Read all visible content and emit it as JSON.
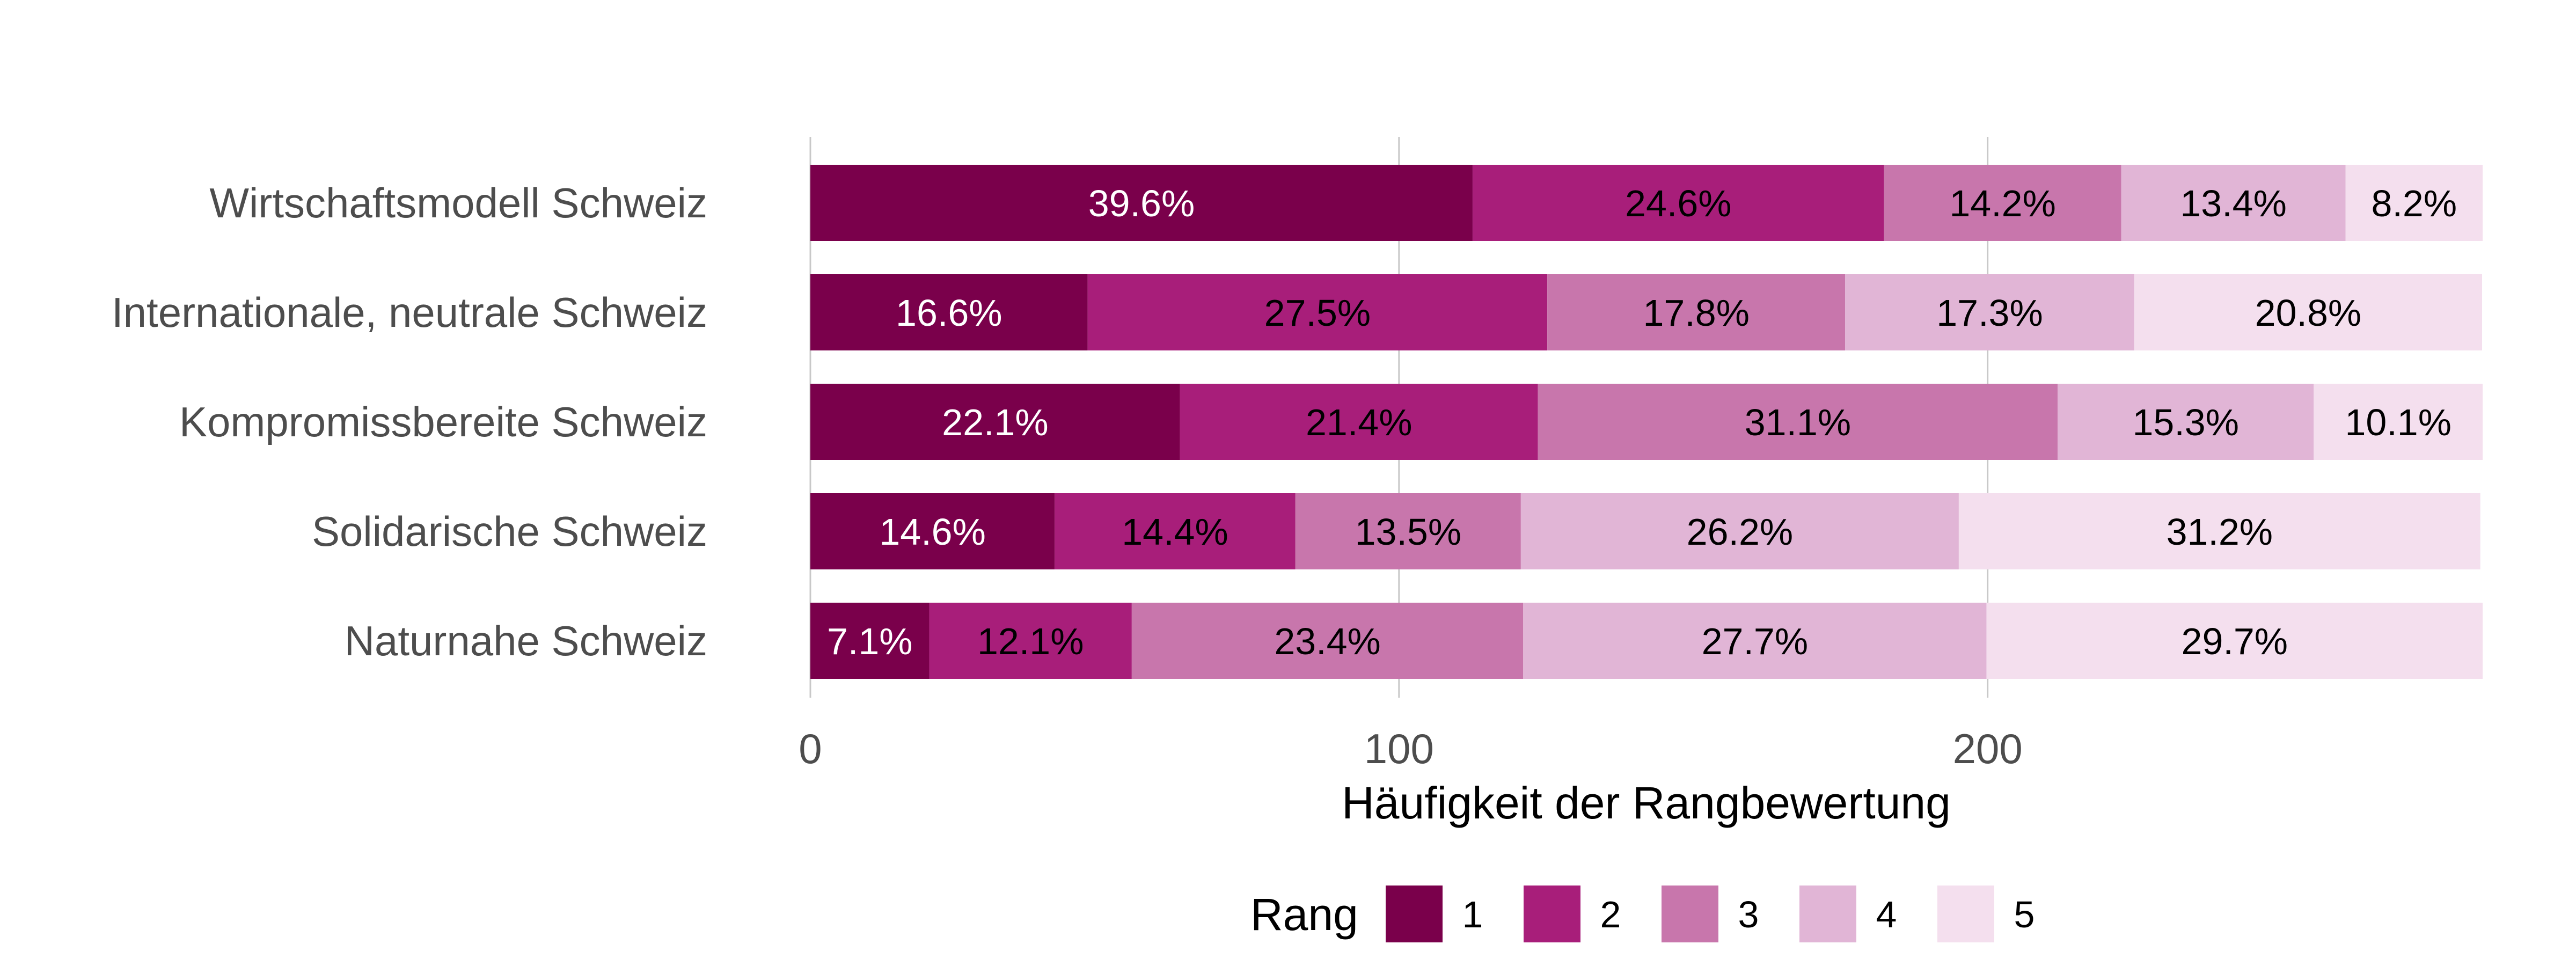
{
  "chart_data": {
    "type": "bar",
    "orientation": "horizontal",
    "stacked": true,
    "title": "",
    "xlabel": "Häufigkeit der Rangbewertung",
    "ylabel": "",
    "xlim": [
      0,
      284
    ],
    "x_ticks": [
      "0",
      "100",
      "200"
    ],
    "x_tick_values": [
      0,
      100,
      200
    ],
    "grid": "vertical major",
    "legend_position": "bottom",
    "legend": {
      "title": "Rang",
      "entries": [
        {
          "label": "1",
          "color": "#7a004b"
        },
        {
          "label": "2",
          "color": "#a81e7a"
        },
        {
          "label": "3",
          "color": "#c876ac"
        },
        {
          "label": "4",
          "color": "#e1b5d6"
        },
        {
          "label": "5",
          "color": "#f4dfee"
        }
      ]
    },
    "total_per_category": 284,
    "categories": [
      "Wirtschaftsmodell Schweiz",
      "Internationale, neutrale Schweiz",
      "Kompromissbereite Schweiz",
      "Solidarische Schweiz",
      "Naturnahe Schweiz"
    ],
    "series": [
      {
        "name": "1",
        "percent_labels": [
          "39.6%",
          "16.6%",
          "22.1%",
          "14.6%",
          "7.1%"
        ],
        "values": [
          112.5,
          47.1,
          62.8,
          41.5,
          20.2
        ]
      },
      {
        "name": "2",
        "percent_labels": [
          "24.6%",
          "27.5%",
          "21.4%",
          "14.4%",
          "12.1%"
        ],
        "values": [
          69.9,
          78.1,
          60.8,
          40.9,
          34.4
        ]
      },
      {
        "name": "3",
        "percent_labels": [
          "14.2%",
          "17.8%",
          "31.1%",
          "13.5%",
          "23.4%"
        ],
        "values": [
          40.3,
          50.6,
          88.3,
          38.3,
          66.5
        ]
      },
      {
        "name": "4",
        "percent_labels": [
          "13.4%",
          "17.3%",
          "15.3%",
          "26.2%",
          "27.7%"
        ],
        "values": [
          38.1,
          49.1,
          43.5,
          74.4,
          78.7
        ]
      },
      {
        "name": "5",
        "percent_labels": [
          "8.2%",
          "20.8%",
          "10.1%",
          "31.2%",
          "29.7%"
        ],
        "values": [
          23.3,
          59.1,
          28.7,
          88.6,
          84.3
        ]
      }
    ],
    "label_text_colors": [
      "#ffffff",
      "#000000",
      "#000000",
      "#000000",
      "#000000"
    ]
  }
}
